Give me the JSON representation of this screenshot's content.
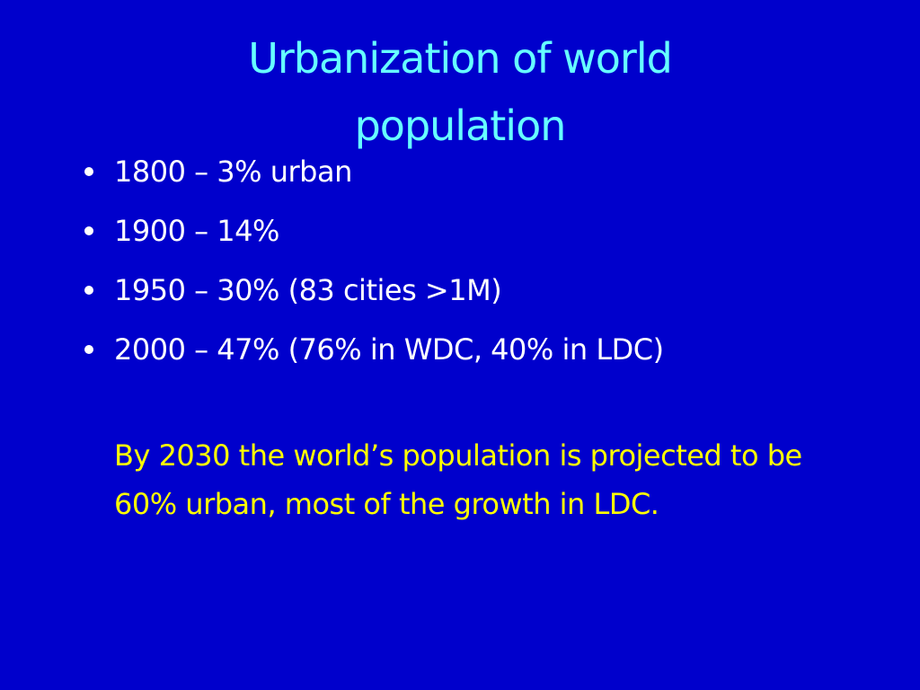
{
  "slide": {
    "title": "Urbanization of world population",
    "bullets": [
      "1800 – 3% urban",
      "1900 – 14%",
      "1950 – 30% (83 cities >1M)",
      "2000 – 47% (76% in WDC, 40% in LDC)"
    ],
    "note": "By 2030 the world’s population is projected to be 60% urban, most of the growth in LDC."
  }
}
